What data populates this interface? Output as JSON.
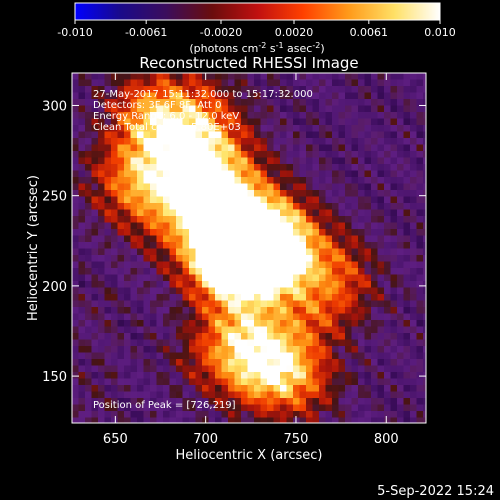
{
  "colorbar": {
    "ticks": [
      "-0.010",
      "-0.0061",
      "-0.0020",
      "0.0020",
      "0.0061",
      "0.010"
    ],
    "tick_values": [
      -0.01,
      -0.0061,
      -0.002,
      0.002,
      0.0061,
      0.01
    ],
    "range": [
      -0.01,
      0.01
    ],
    "unit_parts": {
      "a": "(photons cm",
      "b": "-2",
      "c": " s",
      "d": "-1",
      "e": " asec",
      "f": "-2",
      "g": ")"
    },
    "colors": [
      "#0000ff",
      "#1a0a8a",
      "#3b0d5c",
      "#6a0d0d",
      "#c01010",
      "#ff4000",
      "#ff9a1a",
      "#ffe066",
      "#ffffff"
    ]
  },
  "chart_data": {
    "type": "heatmap",
    "title": "Reconstructed RHESSI Image",
    "xlabel": "Heliocentric X (arcsec)",
    "ylabel": "Heliocentric Y (arcsec)",
    "xlim": [
      626,
      822
    ],
    "ylim": [
      124,
      318
    ],
    "xticks": [
      650,
      700,
      750,
      800
    ],
    "yticks": [
      150,
      200,
      250,
      300
    ],
    "peak": [
      726,
      219
    ],
    "info_lines": [
      "27-May-2017 15:11:32.000 to 15:17:32.000",
      "Detectors: 3F 6F 8F, Att 0",
      "Energy Range: 6.0 - 12.0 keV",
      "Clean     Total counts: 5.80E+03"
    ],
    "peak_label": "Position of Peak = [726,219]"
  },
  "footer": {
    "timestamp": "5-Sep-2022 15:24"
  }
}
